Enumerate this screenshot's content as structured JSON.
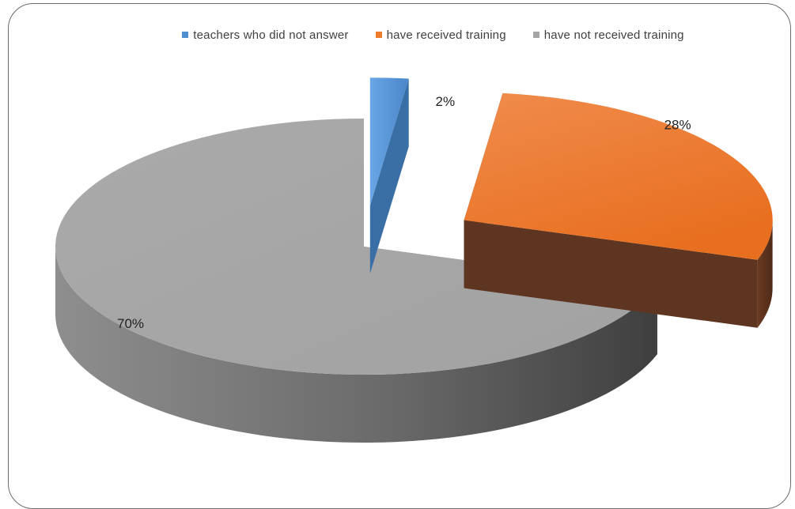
{
  "chart_data": {
    "type": "pie",
    "title": "",
    "style": "3d-exploded",
    "legend_position": "top",
    "categories": [
      "teachers who did not answer",
      "have received training",
      "have not received training"
    ],
    "values": [
      2,
      28,
      70
    ],
    "labels": [
      "2%",
      "28%",
      "70%"
    ],
    "colors": [
      "#4f8fd1",
      "#ee7a2c",
      "#a6a6a6"
    ],
    "side_colors": [
      "#3a6fa6",
      "#5e3520",
      "#6a6a6a"
    ]
  }
}
